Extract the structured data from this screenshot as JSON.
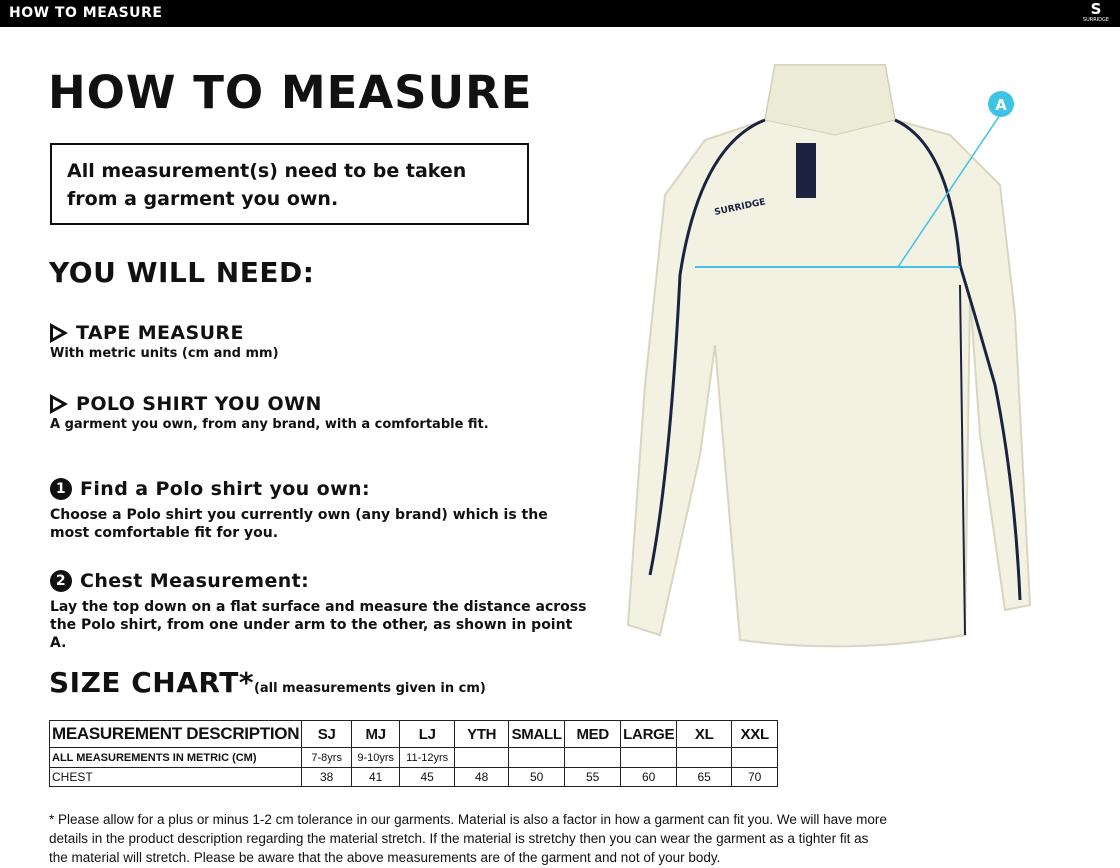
{
  "header": {
    "title": "HOW TO MEASURE",
    "logo_text": "SURRIDGE"
  },
  "page_title": "HOW TO MEASURE",
  "notice": "All measurement(s) need to be taken from a garment you own.",
  "you_will_need": {
    "title": "YOU WILL NEED:",
    "items": [
      {
        "title": "TAPE MEASURE",
        "desc": "With metric units (cm and mm)"
      },
      {
        "title": "POLO SHIRT YOU OWN",
        "desc": "A garment you own, from any brand, with a comfortable fit."
      }
    ]
  },
  "steps": [
    {
      "num": "1",
      "title": "Find a Polo shirt you own:",
      "desc": "Choose a Polo shirt you currently own (any brand) which is the most comfortable fit for you."
    },
    {
      "num": "2",
      "title": "Chest Measurement:",
      "desc": "Lay the top down on a flat surface and measure the distance across the Polo shirt, from one under arm to the other, as shown in point A."
    }
  ],
  "size_chart": {
    "title": "SIZE CHART*",
    "subtitle": "(all measurements given in cm)",
    "header": [
      "MEASUREMENT DESCRIPTION",
      "SJ",
      "MJ",
      "LJ",
      "YTH",
      "SMALL",
      "MED",
      "LARGE",
      "XL",
      "XXL"
    ],
    "rows": [
      [
        "ALL MEASUREMENTS IN METRIC (CM)",
        "7-8yrs",
        "9-10yrs",
        "11-12yrs",
        "",
        "",
        "",
        "",
        "",
        ""
      ],
      [
        "CHEST",
        "38",
        "41",
        "45",
        "48",
        "50",
        "55",
        "60",
        "65",
        "70"
      ]
    ]
  },
  "footnote": "* Please allow for a plus or minus 1-2 cm tolerance in our garments. Material is also a factor in how a garment can fit you. We will have more details in the product description regarding the material stretch.  If the material is stretchy then you can wear the garment as a tighter fit as the material will stretch.  Please be aware that the above measurements are of the garment and not of your body.",
  "image": {
    "point_label": "A",
    "shirt_brand": "SURRIDGE",
    "accent": "#3ec3e6",
    "shirt_color": "#f3f2e2",
    "trim_color": "#1b2340"
  }
}
